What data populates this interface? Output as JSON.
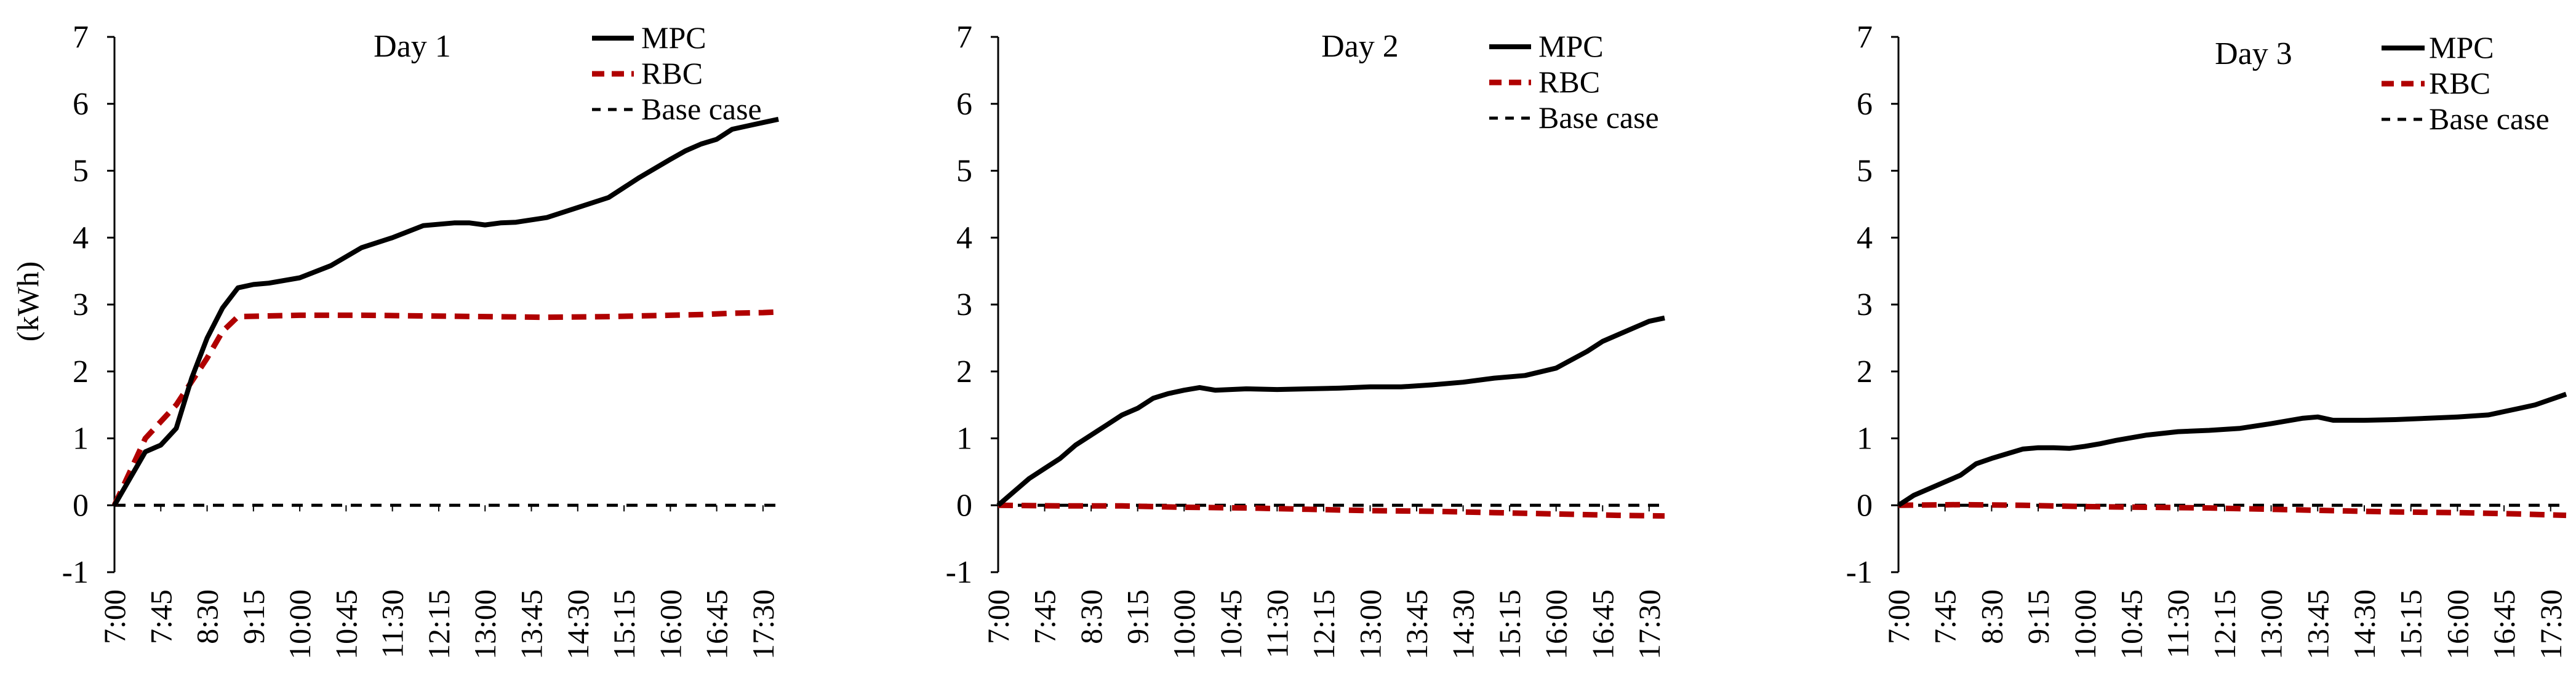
{
  "chart_data": [
    {
      "type": "line",
      "title": "Day 1",
      "xlabel": "",
      "ylabel": "(kWh)",
      "ylim": [
        -1,
        7
      ],
      "yticks": [
        -1,
        0,
        1,
        2,
        3,
        4,
        5,
        6,
        7
      ],
      "x_tick_labels": [
        "7:00",
        "7:45",
        "8:30",
        "9:15",
        "10:00",
        "10:45",
        "11:30",
        "12:15",
        "13:00",
        "13:45",
        "14:30",
        "15:15",
        "16:00",
        "16:45",
        "17:30"
      ],
      "x_range": [
        0,
        10.75
      ],
      "legend": "top-right",
      "series": [
        {
          "name": "MPC",
          "color": "#000000",
          "dash": "solid",
          "x": [
            0,
            0.5,
            0.75,
            1,
            1.25,
            1.5,
            1.75,
            2,
            2.25,
            2.5,
            3,
            3.5,
            4,
            4.5,
            5,
            5.5,
            5.75,
            6,
            6.25,
            6.5,
            7,
            7.5,
            8,
            8.5,
            9,
            9.25,
            9.5,
            9.75,
            10,
            10.25,
            10.5,
            10.75
          ],
          "values": [
            0,
            0.8,
            0.9,
            1.15,
            1.9,
            2.5,
            2.95,
            3.25,
            3.3,
            3.32,
            3.4,
            3.58,
            3.85,
            4.0,
            4.18,
            4.22,
            4.22,
            4.19,
            4.22,
            4.23,
            4.3,
            4.45,
            4.6,
            4.9,
            5.17,
            5.3,
            5.4,
            5.47,
            5.62,
            5.67,
            5.72,
            5.77
          ]
        },
        {
          "name": "RBC",
          "color": "#B00000",
          "dash": "dashed",
          "x": [
            0,
            0.5,
            1,
            1.5,
            1.75,
            2,
            3,
            4,
            5,
            6,
            7,
            8,
            9,
            9.5,
            10,
            10.5,
            10.75
          ],
          "values": [
            0,
            1.0,
            1.5,
            2.2,
            2.6,
            2.82,
            2.84,
            2.84,
            2.83,
            2.82,
            2.81,
            2.82,
            2.84,
            2.85,
            2.87,
            2.88,
            2.89
          ]
        },
        {
          "name": "Base case",
          "color": "#000000",
          "dash": "dashed",
          "x": [
            0,
            10.75
          ],
          "values": [
            0,
            0
          ]
        }
      ]
    },
    {
      "type": "line",
      "title": "Day 2",
      "xlabel": "",
      "ylabel": "",
      "ylim": [
        -1,
        7
      ],
      "yticks": [
        -1,
        0,
        1,
        2,
        3,
        4,
        5,
        6,
        7
      ],
      "x_tick_labels": [
        "7:00",
        "7:45",
        "8:30",
        "9:15",
        "10:00",
        "10:45",
        "11:30",
        "12:15",
        "13:00",
        "13:45",
        "14:30",
        "15:15",
        "16:00",
        "16:45",
        "17:30"
      ],
      "x_range": [
        0,
        10.75
      ],
      "legend": "top-right",
      "series": [
        {
          "name": "MPC",
          "color": "#000000",
          "dash": "solid",
          "x": [
            0,
            0.25,
            0.5,
            0.75,
            1,
            1.25,
            1.5,
            1.75,
            2,
            2.25,
            2.5,
            2.75,
            3,
            3.25,
            3.5,
            4,
            4.5,
            5,
            5.5,
            6,
            6.5,
            7,
            7.5,
            8,
            8.5,
            9,
            9.5,
            9.75,
            10,
            10.25,
            10.5,
            10.75
          ],
          "values": [
            0,
            0.2,
            0.4,
            0.55,
            0.7,
            0.9,
            1.05,
            1.2,
            1.35,
            1.45,
            1.6,
            1.67,
            1.72,
            1.76,
            1.72,
            1.74,
            1.73,
            1.74,
            1.75,
            1.77,
            1.77,
            1.8,
            1.84,
            1.9,
            1.94,
            2.05,
            2.3,
            2.45,
            2.55,
            2.65,
            2.75,
            2.8
          ]
        },
        {
          "name": "RBC",
          "color": "#B00000",
          "dash": "dashed",
          "x": [
            0,
            1,
            2,
            3,
            4,
            5,
            6,
            7,
            8,
            9,
            10,
            10.75
          ],
          "values": [
            0,
            -0.01,
            -0.01,
            -0.03,
            -0.04,
            -0.06,
            -0.08,
            -0.09,
            -0.11,
            -0.13,
            -0.15,
            -0.16
          ]
        },
        {
          "name": "Base case",
          "color": "#000000",
          "dash": "dashed",
          "x": [
            0,
            10.75
          ],
          "values": [
            0,
            0
          ]
        }
      ]
    },
    {
      "type": "line",
      "title": "Day 3",
      "xlabel": "",
      "ylabel": "",
      "ylim": [
        -1,
        7
      ],
      "yticks": [
        -1,
        0,
        1,
        2,
        3,
        4,
        5,
        6,
        7
      ],
      "x_tick_labels": [
        "7:00",
        "7:45",
        "8:30",
        "9:15",
        "10:00",
        "10:45",
        "11:30",
        "12:15",
        "13:00",
        "13:45",
        "14:30",
        "15:15",
        "16:00",
        "16:45",
        "17:30"
      ],
      "x_range": [
        0,
        10.75
      ],
      "legend": "top-right",
      "series": [
        {
          "name": "MPC",
          "color": "#000000",
          "dash": "solid",
          "x": [
            0,
            0.25,
            0.5,
            0.75,
            1,
            1.25,
            1.5,
            1.75,
            2,
            2.25,
            2.5,
            2.75,
            3,
            3.25,
            3.5,
            4,
            4.5,
            5,
            5.5,
            6,
            6.5,
            6.75,
            7,
            7.5,
            8,
            8.5,
            9,
            9.5,
            10,
            10.25,
            10.5,
            10.75
          ],
          "values": [
            0,
            0.15,
            0.25,
            0.35,
            0.45,
            0.62,
            0.7,
            0.77,
            0.84,
            0.86,
            0.86,
            0.85,
            0.88,
            0.92,
            0.97,
            1.05,
            1.1,
            1.12,
            1.15,
            1.22,
            1.3,
            1.32,
            1.27,
            1.27,
            1.28,
            1.3,
            1.32,
            1.35,
            1.45,
            1.5,
            1.58,
            1.66
          ]
        },
        {
          "name": "RBC",
          "color": "#B00000",
          "dash": "dashed",
          "x": [
            0,
            1,
            2,
            3,
            4,
            5,
            6,
            7,
            8,
            9,
            10,
            10.75
          ],
          "values": [
            0,
            0.01,
            0.0,
            -0.02,
            -0.03,
            -0.04,
            -0.06,
            -0.08,
            -0.1,
            -0.11,
            -0.13,
            -0.15
          ]
        },
        {
          "name": "Base case",
          "color": "#000000",
          "dash": "dashed",
          "x": [
            0,
            10.75
          ],
          "values": [
            0,
            0
          ]
        }
      ]
    }
  ]
}
